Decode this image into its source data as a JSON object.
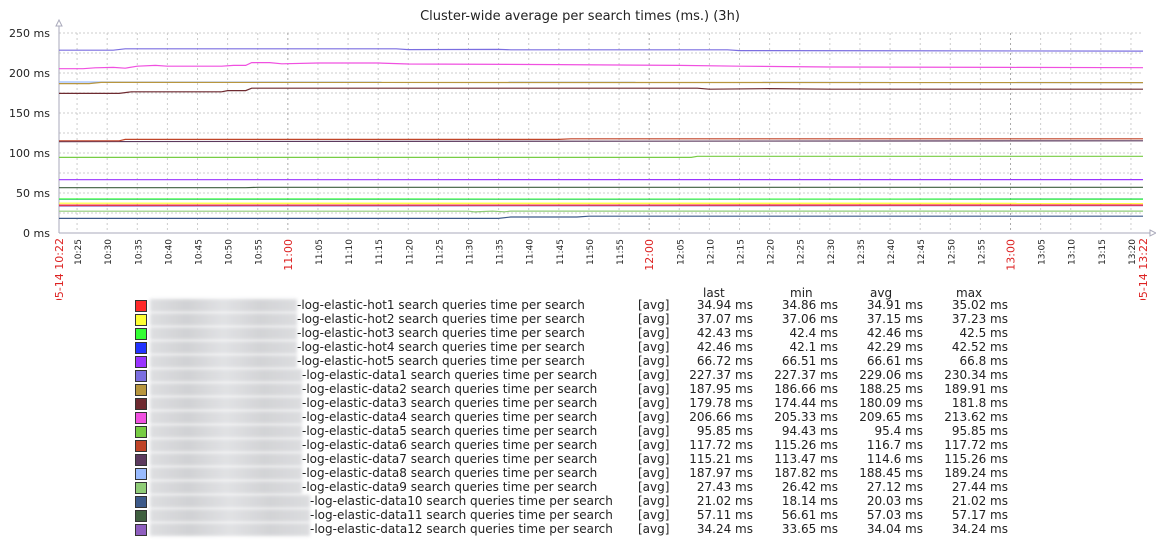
{
  "chart_data": {
    "type": "line",
    "title": "Cluster-wide average per search times (ms.) (3h)",
    "ylim": [
      0,
      250
    ],
    "yticks": [
      "0 ms",
      "50 ms",
      "100 ms",
      "150 ms",
      "200 ms",
      "250 ms"
    ],
    "xrange": [
      "10:22",
      "13:22"
    ],
    "x_start_label": "05-14 10:22",
    "x_end_label": "05-14 13:22",
    "xticks": [
      "10:25",
      "10:30",
      "10:35",
      "10:40",
      "10:45",
      "10:50",
      "10:55",
      "11:00",
      "11:05",
      "11:10",
      "11:15",
      "11:20",
      "11:25",
      "11:30",
      "11:35",
      "11:40",
      "11:45",
      "11:50",
      "11:55",
      "12:00",
      "12:05",
      "12:10",
      "12:15",
      "12:20",
      "12:25",
      "12:30",
      "12:35",
      "12:40",
      "12:45",
      "12:50",
      "12:55",
      "13:00",
      "13:05",
      "13:10",
      "13:15",
      "13:20"
    ],
    "highlight_ticks": [
      "11:00",
      "12:00",
      "13:00"
    ],
    "highlight_color": "#dd2222",
    "grid": true,
    "legend_placement": "bottom",
    "legend_headers": {
      "last": "last",
      "min": "min",
      "avg": "avg",
      "max": "max"
    },
    "series": [
      {
        "name": "-log-elastic-hot1 search queries time per search",
        "func": "[avg]",
        "color": "#ff2a2a",
        "last": "34.94 ms",
        "min": "34.86 ms",
        "avg": "34.91 ms",
        "max": "35.02 ms",
        "points": [
          [
            "10:22",
            34.9
          ],
          [
            "13:22",
            34.94
          ]
        ]
      },
      {
        "name": "-log-elastic-hot2 search queries time per search",
        "func": "[avg]",
        "color": "#ffff33",
        "last": "37.07 ms",
        "min": "37.06 ms",
        "avg": "37.15 ms",
        "max": "37.23 ms",
        "points": [
          [
            "10:22",
            37.2
          ],
          [
            "13:22",
            37.07
          ]
        ]
      },
      {
        "name": "-log-elastic-hot3 search queries time per search",
        "func": "[avg]",
        "color": "#33ff33",
        "last": "42.43 ms",
        "min": "42.4 ms",
        "avg": "42.46 ms",
        "max": "42.5 ms",
        "points": [
          [
            "10:22",
            42.5
          ],
          [
            "13:22",
            42.43
          ]
        ]
      },
      {
        "name": "-log-elastic-hot4 search queries time per search",
        "func": "[avg]",
        "color": "#2233ff",
        "last": "42.46 ms",
        "min": "42.1 ms",
        "avg": "42.29 ms",
        "max": "42.52 ms",
        "points": [
          [
            "10:22",
            42.2
          ],
          [
            "13:22",
            42.46
          ]
        ]
      },
      {
        "name": "-log-elastic-hot5 search queries time per search",
        "func": "[avg]",
        "color": "#9933ff",
        "last": "66.72 ms",
        "min": "66.51 ms",
        "avg": "66.61 ms",
        "max": "66.8 ms",
        "points": [
          [
            "10:22",
            66.6
          ],
          [
            "13:22",
            66.72
          ]
        ]
      },
      {
        "name": "-log-elastic-data1 search queries time per search",
        "func": "[avg]",
        "color": "#7b6ee0",
        "last": "227.37 ms",
        "min": "227.37 ms",
        "avg": "229.06 ms",
        "max": "230.34 ms",
        "points": [
          [
            "10:22",
            228.5
          ],
          [
            "10:31",
            228.5
          ],
          [
            "10:33",
            230.2
          ],
          [
            "11:18",
            230.2
          ],
          [
            "11:20",
            229.2
          ],
          [
            "11:35",
            229.5
          ],
          [
            "11:37",
            229
          ],
          [
            "12:13",
            229
          ],
          [
            "12:15",
            228
          ],
          [
            "13:22",
            227.4
          ]
        ]
      },
      {
        "name": "-log-elastic-data2 search queries time per search",
        "func": "[avg]",
        "color": "#b8963e",
        "last": "187.95 ms",
        "min": "186.66 ms",
        "avg": "188.25 ms",
        "max": "189.91 ms",
        "points": [
          [
            "10:22",
            186.7
          ],
          [
            "10:27",
            186.7
          ],
          [
            "10:29",
            188.2
          ],
          [
            "13:22",
            187.95
          ]
        ]
      },
      {
        "name": "-log-elastic-data3 search queries time per search",
        "func": "[avg]",
        "color": "#6e2a30",
        "last": "179.78 ms",
        "min": "174.44 ms",
        "avg": "180.09 ms",
        "max": "181.8 ms",
        "points": [
          [
            "10:22",
            174.5
          ],
          [
            "10:32",
            174.5
          ],
          [
            "10:34",
            176.5
          ],
          [
            "10:49",
            176.5
          ],
          [
            "10:50",
            178
          ],
          [
            "10:53",
            178
          ],
          [
            "10:54",
            181
          ],
          [
            "12:08",
            181
          ],
          [
            "12:10",
            179.8
          ],
          [
            "12:20",
            180.5
          ],
          [
            "12:30",
            179.8
          ],
          [
            "13:22",
            179.78
          ]
        ]
      },
      {
        "name": "-log-elastic-data4 search queries time per search",
        "func": "[avg]",
        "color": "#f050e0",
        "last": "206.66 ms",
        "min": "205.33 ms",
        "avg": "209.65 ms",
        "max": "213.62 ms",
        "points": [
          [
            "10:22",
            205.4
          ],
          [
            "10:26",
            205.4
          ],
          [
            "10:28",
            206.5
          ],
          [
            "10:31",
            207
          ],
          [
            "10:33",
            206
          ],
          [
            "10:35",
            208.5
          ],
          [
            "10:38",
            209.5
          ],
          [
            "10:40",
            208.5
          ],
          [
            "10:49",
            208.5
          ],
          [
            "10:51",
            209.5
          ],
          [
            "10:53",
            209.5
          ],
          [
            "10:54",
            213
          ],
          [
            "10:57",
            213
          ],
          [
            "10:59",
            211.5
          ],
          [
            "11:05",
            212.5
          ],
          [
            "11:15",
            212.5
          ],
          [
            "11:20",
            211.2
          ],
          [
            "11:45",
            210.5
          ],
          [
            "12:05",
            209.5
          ],
          [
            "12:15",
            208.5
          ],
          [
            "12:30",
            207.5
          ],
          [
            "13:00",
            207
          ],
          [
            "13:22",
            206.66
          ]
        ]
      },
      {
        "name": "-log-elastic-data5 search queries time per search",
        "func": "[avg]",
        "color": "#77cc44",
        "last": "95.85 ms",
        "min": "94.43 ms",
        "avg": "95.4 ms",
        "max": "95.85 ms",
        "points": [
          [
            "10:22",
            94.5
          ],
          [
            "12:07",
            94.5
          ],
          [
            "12:08",
            95.85
          ],
          [
            "13:22",
            95.85
          ]
        ]
      },
      {
        "name": "-log-elastic-data6 search queries time per search",
        "func": "[avg]",
        "color": "#c04428",
        "last": "117.72 ms",
        "min": "115.26 ms",
        "avg": "116.7 ms",
        "max": "117.72 ms",
        "points": [
          [
            "10:22",
            115.3
          ],
          [
            "10:32",
            115.3
          ],
          [
            "10:33",
            117
          ],
          [
            "11:45",
            117
          ],
          [
            "11:47",
            117.7
          ],
          [
            "13:22",
            117.72
          ]
        ]
      },
      {
        "name": "-log-elastic-data7 search queries time per search",
        "func": "[avg]",
        "color": "#5c3a5e",
        "last": "115.21 ms",
        "min": "113.47 ms",
        "avg": "114.6 ms",
        "max": "115.26 ms",
        "points": [
          [
            "10:22",
            114.3
          ],
          [
            "13:22",
            115.21
          ]
        ]
      },
      {
        "name": "-log-elastic-data8 search queries time per search",
        "func": "[avg]",
        "color": "#99bbff",
        "last": "187.97 ms",
        "min": "187.82 ms",
        "avg": "188.45 ms",
        "max": "189.24 ms",
        "points": [
          [
            "10:22",
            188.8
          ],
          [
            "13:22",
            187.97
          ]
        ]
      },
      {
        "name": "-log-elastic-data9 search queries time per search",
        "func": "[avg]",
        "color": "#8fcc77",
        "last": "27.43 ms",
        "min": "26.42 ms",
        "avg": "27.12 ms",
        "max": "27.44 ms",
        "points": [
          [
            "10:22",
            27.2
          ],
          [
            "11:30",
            27.3
          ],
          [
            "11:31",
            26.4
          ],
          [
            "11:34",
            27.4
          ],
          [
            "11:36",
            26.5
          ],
          [
            "11:37",
            27.4
          ],
          [
            "13:22",
            27.43
          ]
        ]
      },
      {
        "name": "-log-elastic-data10 search queries time per search",
        "func": "[avg]",
        "color": "#3d5a8a",
        "last": "21.02 ms",
        "min": "18.14 ms",
        "avg": "20.03 ms",
        "max": "21.02 ms",
        "points": [
          [
            "10:22",
            18.2
          ],
          [
            "11:35",
            18.2
          ],
          [
            "11:37",
            20
          ],
          [
            "11:48",
            20
          ],
          [
            "11:50",
            21
          ],
          [
            "13:22",
            21.02
          ]
        ]
      },
      {
        "name": "-log-elastic-data11 search queries time per search",
        "func": "[avg]",
        "color": "#3f5f3f",
        "last": "57.11 ms",
        "min": "56.61 ms",
        "avg": "57.03 ms",
        "max": "57.17 ms",
        "points": [
          [
            "10:22",
            56.6
          ],
          [
            "10:53",
            56.6
          ],
          [
            "10:55",
            57.1
          ],
          [
            "13:22",
            57.11
          ]
        ]
      },
      {
        "name": "-log-elastic-data12 search queries time per search",
        "func": "[avg]",
        "color": "#8f5fbf",
        "last": "34.24 ms",
        "min": "33.65 ms",
        "avg": "34.04 ms",
        "max": "34.24 ms",
        "points": [
          [
            "10:22",
            33.8
          ],
          [
            "13:22",
            34.24
          ]
        ]
      }
    ]
  }
}
